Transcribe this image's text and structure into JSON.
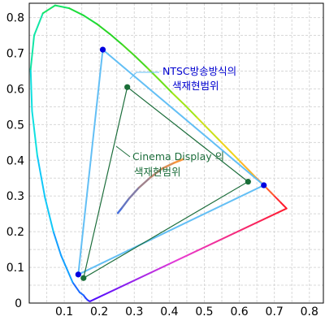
{
  "chart_data": {
    "type": "scatter",
    "title": "",
    "xlabel": "",
    "ylabel": "",
    "xlim": [
      0,
      0.84
    ],
    "ylim": [
      0,
      0.84
    ],
    "grid": true,
    "x_ticks": [
      "0.1",
      "0.2",
      "0.3",
      "0.4",
      "0.5",
      "0.6",
      "0.7",
      "0.8"
    ],
    "y_ticks": [
      "0",
      "0.1",
      "0.2",
      "0.3",
      "0.4",
      "0.5",
      "0.6",
      "0.7",
      "0.8"
    ],
    "spectral_locus": {
      "points": [
        [
          0.174,
          0.005
        ],
        [
          0.173,
          0.005
        ],
        [
          0.17,
          0.006
        ],
        [
          0.166,
          0.009
        ],
        [
          0.161,
          0.014
        ],
        [
          0.155,
          0.022
        ],
        [
          0.144,
          0.03
        ],
        [
          0.124,
          0.058
        ],
        [
          0.091,
          0.133
        ],
        [
          0.069,
          0.2
        ],
        [
          0.045,
          0.295
        ],
        [
          0.023,
          0.413
        ],
        [
          0.008,
          0.538
        ],
        [
          0.004,
          0.655
        ],
        [
          0.014,
          0.75
        ],
        [
          0.039,
          0.812
        ],
        [
          0.074,
          0.834
        ],
        [
          0.114,
          0.826
        ],
        [
          0.155,
          0.806
        ],
        [
          0.193,
          0.782
        ],
        [
          0.23,
          0.754
        ],
        [
          0.266,
          0.724
        ],
        [
          0.302,
          0.692
        ],
        [
          0.337,
          0.659
        ],
        [
          0.373,
          0.624
        ],
        [
          0.408,
          0.589
        ],
        [
          0.444,
          0.555
        ],
        [
          0.479,
          0.52
        ],
        [
          0.512,
          0.487
        ],
        [
          0.544,
          0.455
        ],
        [
          0.575,
          0.424
        ],
        [
          0.603,
          0.396
        ],
        [
          0.627,
          0.372
        ],
        [
          0.648,
          0.351
        ],
        [
          0.666,
          0.334
        ],
        [
          0.68,
          0.32
        ],
        [
          0.691,
          0.309
        ],
        [
          0.701,
          0.299
        ],
        [
          0.71,
          0.29
        ],
        [
          0.719,
          0.281
        ],
        [
          0.726,
          0.274
        ],
        [
          0.735,
          0.265
        ]
      ],
      "colors": [
        "#4b0bff",
        "#3a1cff",
        "#1f44ff",
        "#1b6cff",
        "#14a0ff",
        "#11c8f8",
        "#10e0e0",
        "#12e6a6",
        "#16e466",
        "#1cdc3a",
        "#28d424",
        "#46d820",
        "#6ee01a",
        "#a0e616",
        "#cce01a",
        "#f0d41e",
        "#ffb424",
        "#ff8c2a",
        "#ff5a30",
        "#ff2a30",
        "#ff1a2c"
      ]
    },
    "purple_line_color": "#e83cd4",
    "planckian_locus": [
      [
        0.253,
        0.252
      ],
      [
        0.265,
        0.267
      ],
      [
        0.285,
        0.293
      ],
      [
        0.313,
        0.323
      ],
      [
        0.346,
        0.352
      ],
      [
        0.38,
        0.377
      ],
      [
        0.414,
        0.393
      ],
      [
        0.44,
        0.403
      ]
    ],
    "series": [
      {
        "name": "NTSC방송방식의 색재현범위",
        "color": "#63bff5",
        "vertices": [
          [
            0.67,
            0.33
          ],
          [
            0.21,
            0.71
          ],
          [
            0.14,
            0.08
          ]
        ]
      },
      {
        "name": "Cinema Display 의 색재현범위",
        "color": "#1d6e3c",
        "vertices": [
          [
            0.625,
            0.34
          ],
          [
            0.28,
            0.605
          ],
          [
            0.155,
            0.07
          ]
        ]
      }
    ],
    "vertex_colors": {
      "ntsc": "#0000e0",
      "cinema": "#1a6e38"
    },
    "annotations": [
      {
        "lines": [
          "NTSC방송방식의",
          "색재현범위"
        ],
        "color": "#0000d0",
        "points_to_series": 0
      },
      {
        "lines": [
          "Cinema Display 의",
          "색재현범위"
        ],
        "color": "#1d6e3c",
        "points_to_series": 1
      }
    ],
    "colors": {
      "grid": "#d8d8d8",
      "frame": "#000000"
    }
  }
}
